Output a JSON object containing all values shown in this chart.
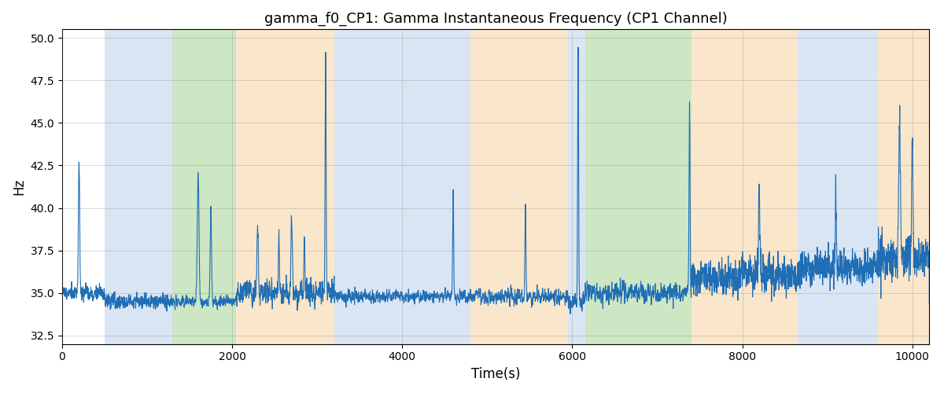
{
  "title": "gamma_f0_CP1: Gamma Instantaneous Frequency (CP1 Channel)",
  "xlabel": "Time(s)",
  "ylabel": "Hz",
  "ylim": [
    32.0,
    50.5
  ],
  "yticks": [
    32.5,
    35.0,
    37.5,
    40.0,
    42.5,
    45.0,
    47.5,
    50.0
  ],
  "xlim": [
    0,
    10200
  ],
  "xticks": [
    0,
    2000,
    4000,
    6000,
    8000,
    10000
  ],
  "line_color": "#1f6eb5",
  "line_width": 0.8,
  "bg_color": "#ffffff",
  "regions": [
    {
      "start": 500,
      "end": 1300,
      "color": "#aec6e8",
      "alpha": 0.45
    },
    {
      "start": 1300,
      "end": 2050,
      "color": "#90c97a",
      "alpha": 0.45
    },
    {
      "start": 2050,
      "end": 3200,
      "color": "#f5c98a",
      "alpha": 0.45
    },
    {
      "start": 3200,
      "end": 4800,
      "color": "#aec6e8",
      "alpha": 0.45
    },
    {
      "start": 4800,
      "end": 5950,
      "color": "#f5c98a",
      "alpha": 0.45
    },
    {
      "start": 5950,
      "end": 6150,
      "color": "#aec6e8",
      "alpha": 0.45
    },
    {
      "start": 6150,
      "end": 7400,
      "color": "#90c97a",
      "alpha": 0.45
    },
    {
      "start": 7400,
      "end": 8650,
      "color": "#f5c98a",
      "alpha": 0.45
    },
    {
      "start": 8650,
      "end": 9600,
      "color": "#aec6e8",
      "alpha": 0.45
    },
    {
      "start": 9600,
      "end": 10200,
      "color": "#f5c98a",
      "alpha": 0.45
    }
  ],
  "seed": 42,
  "n_points": 20000,
  "base_freq": 35.0
}
